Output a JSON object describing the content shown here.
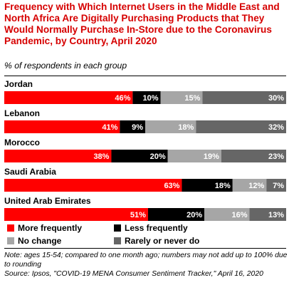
{
  "title": "Frequency with Which Internet Users in the Middle East and North Africa Are Digitally Purchasing Products that They Would Normally Purchase In-Store due to the Coronavirus Pandemic, by Country, April 2020",
  "subtitle": "% of respondents in each group",
  "note": "Note: ages 15-54; compared to one month ago; numbers may not add up to 100% due to rounding",
  "source": "Source: Ipsos, \"COVID-19 MENA Consumer Sentiment Tracker,\" April 16, 2020",
  "colors": {
    "title": "#d60000",
    "more_frequently": "#ff0000",
    "less_frequently": "#000000",
    "no_change": "#a6a6a6",
    "rarely_or_never": "#666666"
  },
  "legend": [
    {
      "label": "More frequently",
      "color": "#ff0000"
    },
    {
      "label": "No change",
      "color": "#a6a6a6"
    },
    {
      "label": "Less frequently",
      "color": "#000000"
    },
    {
      "label": "Rarely or never do",
      "color": "#666666"
    }
  ],
  "chart_data": {
    "type": "bar",
    "orientation": "horizontal-stacked",
    "categories": [
      "Jordan",
      "Lebanon",
      "Morocco",
      "Saudi Arabia",
      "United Arab Emirates"
    ],
    "series": [
      {
        "name": "More frequently",
        "values": [
          46,
          41,
          38,
          63,
          51
        ]
      },
      {
        "name": "Less frequently",
        "values": [
          10,
          9,
          20,
          18,
          20
        ]
      },
      {
        "name": "No change",
        "values": [
          15,
          18,
          19,
          12,
          16
        ]
      },
      {
        "name": "Rarely or never do",
        "values": [
          30,
          32,
          23,
          7,
          13
        ]
      }
    ],
    "labels": [
      [
        "46%",
        "10%",
        "15%",
        "30%"
      ],
      [
        "41%",
        "9%",
        "18%",
        "32%"
      ],
      [
        "38%",
        "20%",
        "19%",
        "23%"
      ],
      [
        "63%",
        "18%",
        "12%",
        "7%"
      ],
      [
        "51%",
        "20%",
        "16%",
        "13%"
      ]
    ],
    "stack_order": [
      "More frequently",
      "Less frequently",
      "No change",
      "Rarely or never do"
    ],
    "legend_position": "bottom",
    "grid": false
  }
}
